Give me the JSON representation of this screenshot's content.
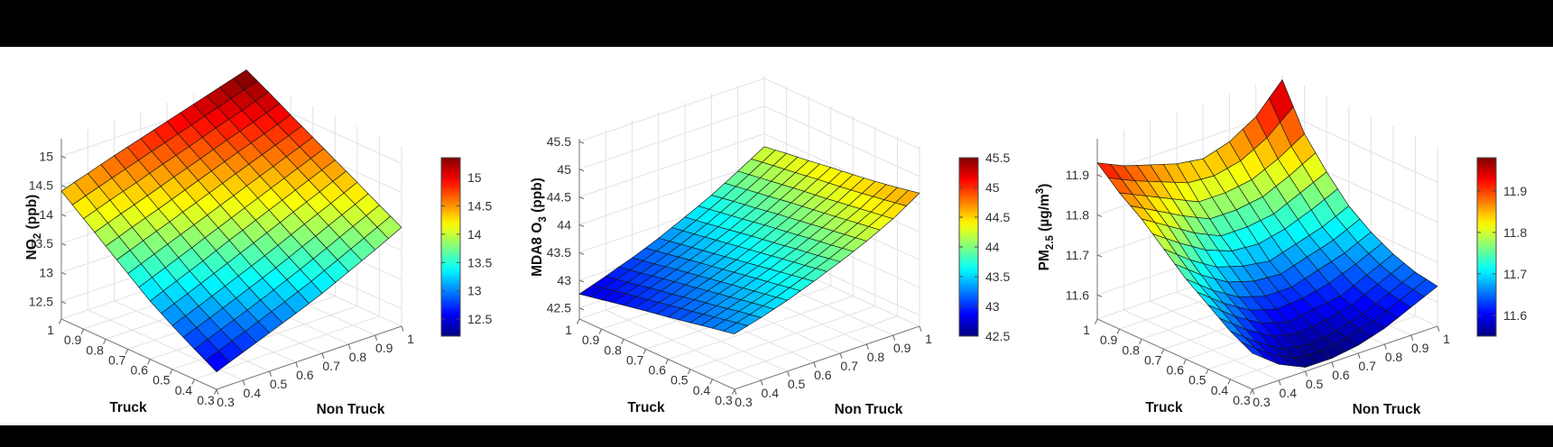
{
  "page": {
    "background": "#ffffff",
    "top_bar_color": "#000000",
    "bottom_bar_color": "#000000"
  },
  "style_colors": {
    "grid": "#e2e2e2",
    "axis": "#808080",
    "tick_mark": "#6e6e6e",
    "tick_label": "#333333",
    "axis_label": "#111111",
    "mesh_edge": "#161616",
    "colorbar_border": "#4a4a4a"
  },
  "chart_data": [
    {
      "id": "no2",
      "type": "surface",
      "colormap": "jet",
      "xlabel": "Non Truck",
      "ylabel": "Truck",
      "zlabel": "NO2 (ppb)",
      "zlabel_parts": [
        {
          "t": "NO"
        },
        {
          "sub": "2"
        },
        {
          "t": " (ppb)"
        }
      ],
      "x": [
        0.3,
        0.4,
        0.5,
        0.6,
        0.7,
        0.8,
        0.9,
        1.0
      ],
      "y": [
        0.3,
        0.4,
        0.5,
        0.6,
        0.7,
        0.8,
        0.9,
        1.0
      ],
      "x_ticks": [
        0.3,
        0.4,
        0.5,
        0.6,
        0.7,
        0.8,
        0.9,
        1
      ],
      "y_ticks": [
        0.3,
        0.4,
        0.5,
        0.6,
        0.7,
        0.8,
        0.9,
        1
      ],
      "z_ticks": [
        12.5,
        13,
        13.5,
        14,
        14.5,
        15
      ],
      "zlim": [
        12.2,
        15.3
      ],
      "clim": [
        12.2,
        15.35
      ],
      "colorbar_ticks": [
        12.5,
        13,
        13.5,
        14,
        14.5,
        15
      ],
      "z_grid": [
        [
          12.5,
          12.68,
          12.86,
          13.04,
          13.23,
          13.45,
          13.67,
          13.9
        ],
        [
          12.72,
          12.9,
          13.08,
          13.27,
          13.47,
          13.68,
          13.9,
          14.11
        ],
        [
          12.95,
          13.13,
          13.32,
          13.51,
          13.71,
          13.92,
          14.12,
          14.33
        ],
        [
          13.2,
          13.39,
          13.58,
          13.78,
          13.97,
          14.16,
          14.35,
          14.54
        ],
        [
          13.5,
          13.68,
          13.86,
          14.04,
          14.22,
          14.4,
          14.58,
          14.76
        ],
        [
          13.8,
          13.97,
          14.13,
          14.3,
          14.47,
          14.64,
          14.8,
          14.97
        ],
        [
          14.1,
          14.26,
          14.41,
          14.57,
          14.72,
          14.88,
          15.03,
          15.19
        ],
        [
          14.4,
          14.55,
          14.7,
          14.84,
          14.98,
          15.12,
          15.26,
          15.4
        ]
      ]
    },
    {
      "id": "mda8_o3",
      "type": "surface",
      "colormap": "jet",
      "xlabel": "Non Truck",
      "ylabel": "Truck",
      "zlabel": "MDA8 O3 (ppb)",
      "zlabel_parts": [
        {
          "t": "MDA8 O"
        },
        {
          "sub": "3"
        },
        {
          "t": " (ppb)"
        }
      ],
      "x": [
        0.3,
        0.4,
        0.5,
        0.6,
        0.7,
        0.8,
        0.9,
        1.0
      ],
      "y": [
        0.3,
        0.4,
        0.5,
        0.6,
        0.7,
        0.8,
        0.9,
        1.0
      ],
      "x_ticks": [
        0.3,
        0.4,
        0.5,
        0.6,
        0.7,
        0.8,
        0.9,
        1
      ],
      "y_ticks": [
        0.3,
        0.4,
        0.5,
        0.6,
        0.7,
        0.8,
        0.9,
        1
      ],
      "z_ticks": [
        42.5,
        43,
        43.5,
        44,
        44.5,
        45,
        45.5
      ],
      "zlim": [
        42.3,
        45.55
      ],
      "clim": [
        42.5,
        45.5
      ],
      "colorbar_ticks": [
        42.5,
        43,
        43.5,
        44,
        44.5,
        45,
        45.5
      ],
      "z_grid": [
        [
          43.3,
          43.43,
          43.58,
          43.76,
          43.95,
          44.16,
          44.4,
          44.7
        ],
        [
          43.22,
          43.36,
          43.51,
          43.69,
          43.88,
          44.1,
          44.34,
          44.62
        ],
        [
          43.14,
          43.28,
          43.44,
          43.62,
          43.82,
          44.04,
          44.28,
          44.55
        ],
        [
          43.06,
          43.21,
          43.37,
          43.55,
          43.75,
          43.98,
          44.22,
          44.49
        ],
        [
          42.99,
          43.13,
          43.3,
          43.48,
          43.69,
          43.92,
          44.17,
          44.44
        ],
        [
          42.91,
          43.06,
          43.23,
          43.41,
          43.62,
          43.85,
          44.11,
          44.38
        ],
        [
          42.83,
          42.98,
          43.15,
          43.34,
          43.55,
          43.79,
          44.05,
          44.33
        ],
        [
          42.75,
          42.91,
          43.08,
          43.27,
          43.49,
          43.72,
          43.99,
          44.27
        ]
      ]
    },
    {
      "id": "pm2_5",
      "type": "surface",
      "colormap": "jet",
      "xlabel": "Non Truck",
      "ylabel": "Truck",
      "zlabel": "PM2.5 (ug/m3)",
      "zlabel_parts": [
        {
          "t": "PM"
        },
        {
          "sub": "2.5"
        },
        {
          "t": " (µg/m"
        },
        {
          "sup": "3"
        },
        {
          "t": ")"
        }
      ],
      "x": [
        0.3,
        0.4,
        0.5,
        0.6,
        0.7,
        0.8,
        0.9,
        1.0
      ],
      "y": [
        0.3,
        0.4,
        0.5,
        0.6,
        0.7,
        0.8,
        0.9,
        1.0
      ],
      "x_ticks": [
        0.3,
        0.4,
        0.5,
        0.6,
        0.7,
        0.8,
        0.9,
        1
      ],
      "y_ticks": [
        0.3,
        0.4,
        0.5,
        0.6,
        0.7,
        0.8,
        0.9,
        1
      ],
      "z_ticks": [
        11.6,
        11.7,
        11.8,
        11.9
      ],
      "zlim": [
        11.54,
        11.99
      ],
      "clim": [
        11.55,
        11.98
      ],
      "colorbar_ticks": [
        11.6,
        11.7,
        11.8,
        11.9
      ],
      "z_grid": [
        [
          11.63,
          11.58,
          11.55,
          11.55,
          11.56,
          11.58,
          11.61,
          11.64
        ],
        [
          11.66,
          11.61,
          11.57,
          11.56,
          11.57,
          11.59,
          11.62,
          11.65
        ],
        [
          11.7,
          11.65,
          11.61,
          11.59,
          11.6,
          11.61,
          11.64,
          11.67
        ],
        [
          11.74,
          11.69,
          11.65,
          11.63,
          11.63,
          11.65,
          11.67,
          11.7
        ],
        [
          11.79,
          11.74,
          11.7,
          11.68,
          11.67,
          11.69,
          11.71,
          11.74
        ],
        [
          11.84,
          11.8,
          11.76,
          11.73,
          11.73,
          11.74,
          11.77,
          11.8
        ],
        [
          11.88,
          11.85,
          11.82,
          11.79,
          11.79,
          11.8,
          11.83,
          11.87
        ],
        [
          11.93,
          11.9,
          11.88,
          11.86,
          11.85,
          11.87,
          11.91,
          11.98
        ]
      ]
    }
  ]
}
